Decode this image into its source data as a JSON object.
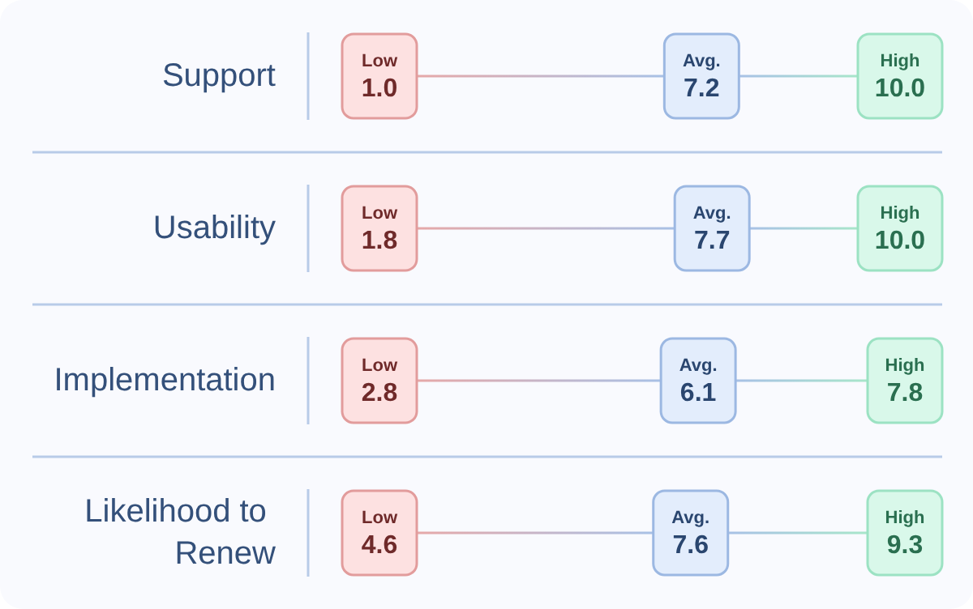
{
  "chart_data": {
    "type": "other",
    "categories": [
      "Support",
      "Usability",
      "Implementation",
      "Likelihood to Renew"
    ],
    "series": [
      {
        "name": "Low",
        "color": "#fde1e1",
        "values": [
          1.0,
          1.8,
          2.8,
          4.6
        ],
        "value_labels": [
          "1.0",
          "1.8",
          "2.8",
          "4.6"
        ]
      },
      {
        "name": "Avg.",
        "color": "#e3edfc",
        "values": [
          7.2,
          7.7,
          6.1,
          7.6
        ],
        "value_labels": [
          "7.2",
          "7.7",
          "6.1",
          "7.6"
        ]
      },
      {
        "name": "High",
        "color": "#d9f8ea",
        "values": [
          10.0,
          10.0,
          7.8,
          9.3
        ],
        "value_labels": [
          "10.0",
          "10.0",
          "7.8",
          "9.3"
        ]
      }
    ]
  }
}
